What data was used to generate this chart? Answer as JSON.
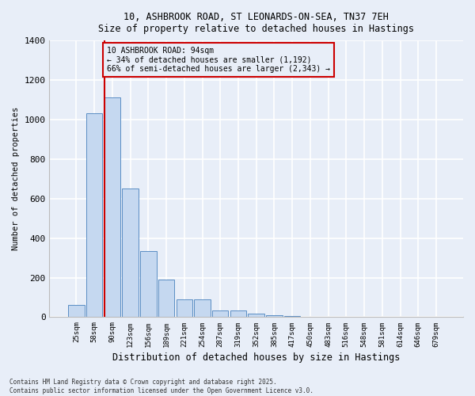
{
  "title_line1": "10, ASHBROOK ROAD, ST LEONARDS-ON-SEA, TN37 7EH",
  "title_line2": "Size of property relative to detached houses in Hastings",
  "xlabel": "Distribution of detached houses by size in Hastings",
  "ylabel": "Number of detached properties",
  "footer_line1": "Contains HM Land Registry data © Crown copyright and database right 2025.",
  "footer_line2": "Contains public sector information licensed under the Open Government Licence v3.0.",
  "categories": [
    "25sqm",
    "58sqm",
    "90sqm",
    "123sqm",
    "156sqm",
    "189sqm",
    "221sqm",
    "254sqm",
    "287sqm",
    "319sqm",
    "352sqm",
    "385sqm",
    "417sqm",
    "450sqm",
    "483sqm",
    "516sqm",
    "548sqm",
    "581sqm",
    "614sqm",
    "646sqm",
    "679sqm"
  ],
  "values": [
    63,
    1030,
    1110,
    650,
    335,
    190,
    90,
    90,
    35,
    35,
    18,
    10,
    7,
    0,
    0,
    0,
    0,
    0,
    0,
    0,
    0
  ],
  "bar_color": "#c5d8f0",
  "bar_edge_color": "#5b8ec4",
  "background_color": "#e8eef8",
  "grid_color": "#ffffff",
  "vline_color": "#cc0000",
  "annotation_title": "10 ASHBROOK ROAD: 94sqm",
  "annotation_line2": "← 34% of detached houses are smaller (1,192)",
  "annotation_line3": "66% of semi-detached houses are larger (2,343) →",
  "annotation_box_color": "#cc0000",
  "ylim": [
    0,
    1400
  ],
  "yticks": [
    0,
    200,
    400,
    600,
    800,
    1000,
    1200,
    1400
  ]
}
